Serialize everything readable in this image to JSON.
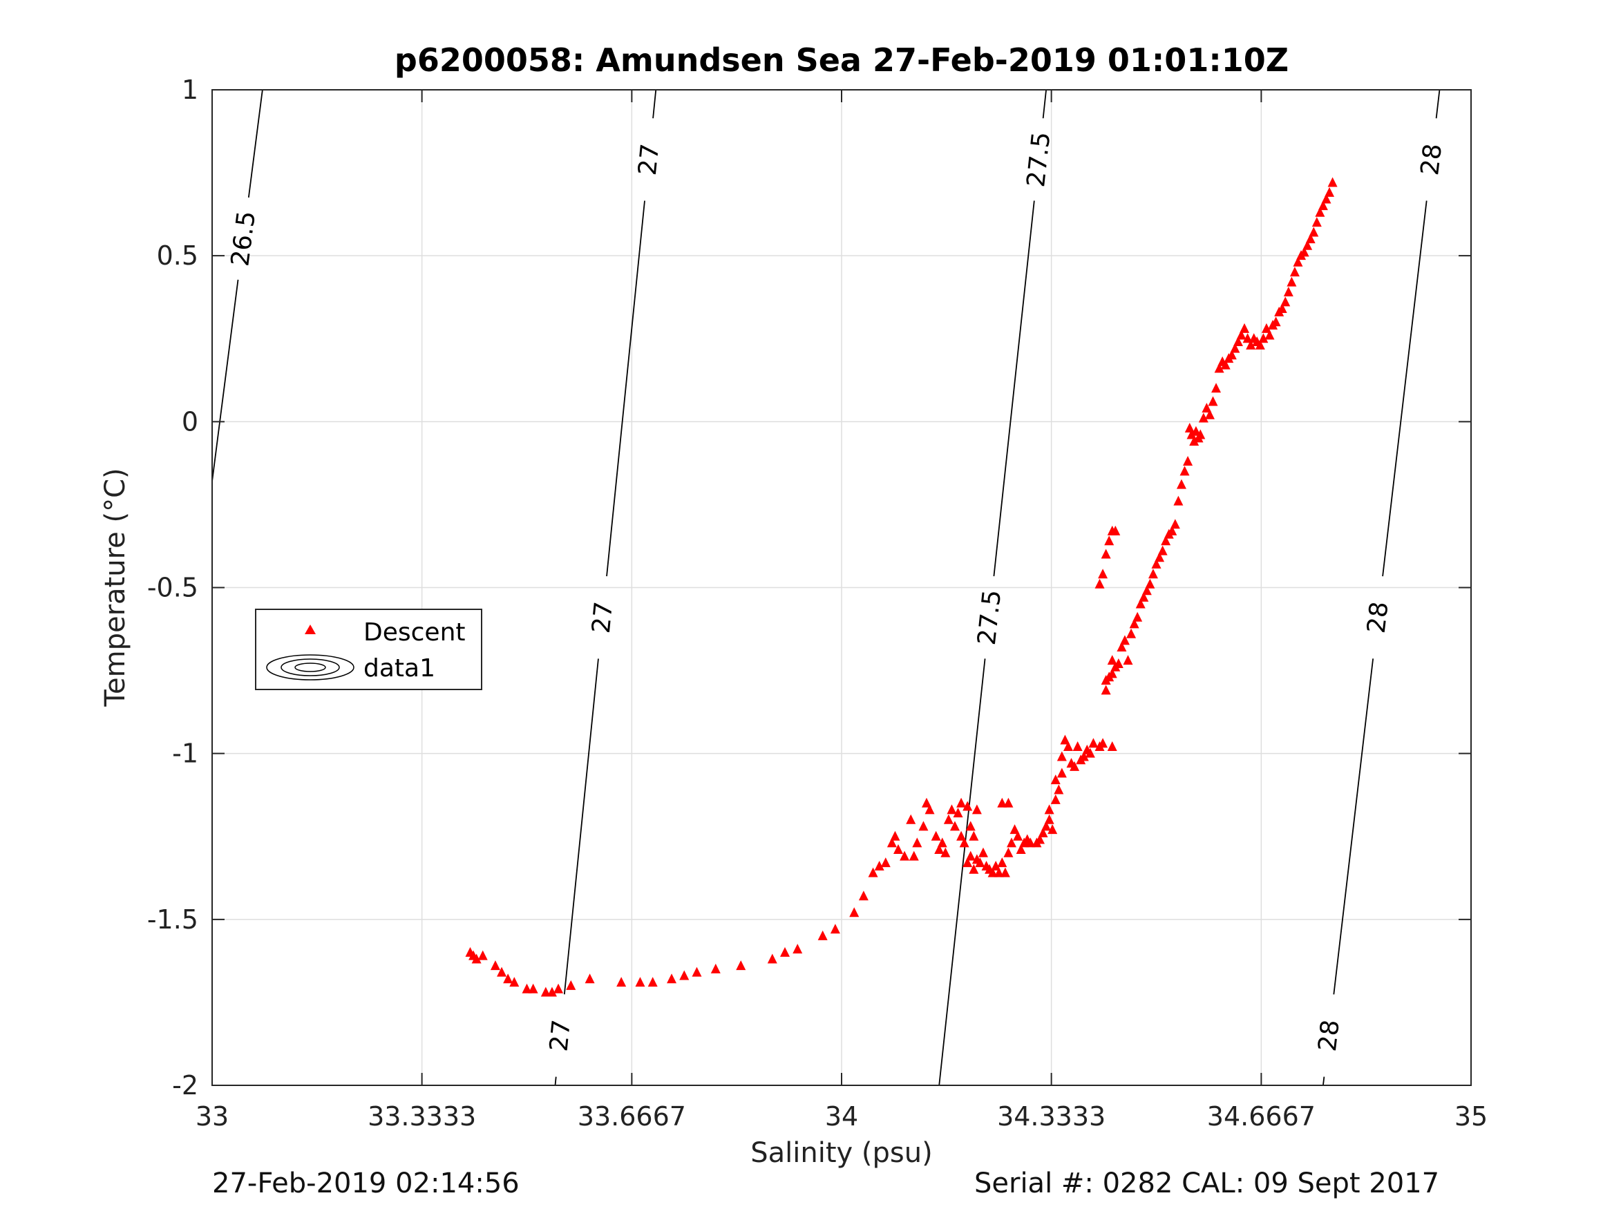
{
  "chart_data": {
    "type": "scatter",
    "title": "p6200058: Amundsen Sea 27-Feb-2019 01:01:10Z",
    "xlabel": "Salinity (psu)",
    "ylabel": "Temperature (°C)",
    "xlim": [
      33,
      35
    ],
    "ylim": [
      -2,
      1
    ],
    "x_ticks": [
      "33",
      "33.3333",
      "33.6667",
      "34",
      "34.3333",
      "34.6667",
      "35"
    ],
    "y_ticks": [
      "1",
      "0.5",
      "0",
      "-0.5",
      "-1",
      "-1.5",
      "-2"
    ],
    "grid": true,
    "legend": {
      "placement": "middle-left",
      "entries": [
        "Descent",
        "data1"
      ]
    },
    "marker_color": "#ff0000",
    "series": [
      {
        "name": "Descent",
        "marker": "triangle",
        "points": [
          [
            33.41,
            -1.6
          ],
          [
            33.415,
            -1.61
          ],
          [
            33.42,
            -1.62
          ],
          [
            33.43,
            -1.61
          ],
          [
            33.45,
            -1.64
          ],
          [
            33.46,
            -1.66
          ],
          [
            33.47,
            -1.68
          ],
          [
            33.48,
            -1.69
          ],
          [
            33.5,
            -1.71
          ],
          [
            33.51,
            -1.71
          ],
          [
            33.53,
            -1.72
          ],
          [
            33.54,
            -1.72
          ],
          [
            33.55,
            -1.71
          ],
          [
            33.57,
            -1.7
          ],
          [
            33.6,
            -1.68
          ],
          [
            33.65,
            -1.69
          ],
          [
            33.68,
            -1.69
          ],
          [
            33.7,
            -1.69
          ],
          [
            33.73,
            -1.68
          ],
          [
            33.75,
            -1.67
          ],
          [
            33.77,
            -1.66
          ],
          [
            33.8,
            -1.65
          ],
          [
            33.84,
            -1.64
          ],
          [
            33.89,
            -1.62
          ],
          [
            33.91,
            -1.6
          ],
          [
            33.93,
            -1.59
          ],
          [
            33.97,
            -1.55
          ],
          [
            33.99,
            -1.53
          ],
          [
            34.02,
            -1.48
          ],
          [
            34.035,
            -1.43
          ],
          [
            34.05,
            -1.36
          ],
          [
            34.06,
            -1.34
          ],
          [
            34.07,
            -1.33
          ],
          [
            34.08,
            -1.27
          ],
          [
            34.085,
            -1.25
          ],
          [
            34.09,
            -1.29
          ],
          [
            34.1,
            -1.31
          ],
          [
            34.11,
            -1.2
          ],
          [
            34.115,
            -1.31
          ],
          [
            34.12,
            -1.27
          ],
          [
            34.13,
            -1.22
          ],
          [
            34.135,
            -1.15
          ],
          [
            34.14,
            -1.17
          ],
          [
            34.15,
            -1.25
          ],
          [
            34.155,
            -1.29
          ],
          [
            34.16,
            -1.27
          ],
          [
            34.165,
            -1.3
          ],
          [
            34.17,
            -1.2
          ],
          [
            34.175,
            -1.17
          ],
          [
            34.18,
            -1.22
          ],
          [
            34.185,
            -1.18
          ],
          [
            34.19,
            -1.15
          ],
          [
            34.195,
            -1.27
          ],
          [
            34.2,
            -1.16
          ],
          [
            34.205,
            -1.22
          ],
          [
            34.21,
            -1.25
          ],
          [
            34.215,
            -1.17
          ],
          [
            34.19,
            -1.25
          ],
          [
            34.2,
            -1.33
          ],
          [
            34.205,
            -1.31
          ],
          [
            34.21,
            -1.35
          ],
          [
            34.215,
            -1.32
          ],
          [
            34.22,
            -1.33
          ],
          [
            34.225,
            -1.3
          ],
          [
            34.23,
            -1.34
          ],
          [
            34.235,
            -1.35
          ],
          [
            34.24,
            -1.36
          ],
          [
            34.245,
            -1.34
          ],
          [
            34.25,
            -1.36
          ],
          [
            34.255,
            -1.33
          ],
          [
            34.26,
            -1.36
          ],
          [
            34.265,
            -1.3
          ],
          [
            34.255,
            -1.15
          ],
          [
            34.265,
            -1.15
          ],
          [
            34.27,
            -1.27
          ],
          [
            34.275,
            -1.23
          ],
          [
            34.28,
            -1.25
          ],
          [
            34.285,
            -1.29
          ],
          [
            34.29,
            -1.27
          ],
          [
            34.295,
            -1.26
          ],
          [
            34.3,
            -1.27
          ],
          [
            34.31,
            -1.27
          ],
          [
            34.315,
            -1.26
          ],
          [
            34.32,
            -1.24
          ],
          [
            34.325,
            -1.22
          ],
          [
            34.33,
            -1.2
          ],
          [
            34.335,
            -1.23
          ],
          [
            34.33,
            -1.17
          ],
          [
            34.34,
            -1.14
          ],
          [
            34.345,
            -1.11
          ],
          [
            34.34,
            -1.08
          ],
          [
            34.35,
            -1.06
          ],
          [
            34.35,
            -1.01
          ],
          [
            34.355,
            -0.96
          ],
          [
            34.36,
            -0.98
          ],
          [
            34.365,
            -1.03
          ],
          [
            34.37,
            -1.04
          ],
          [
            34.375,
            -0.98
          ],
          [
            34.38,
            -1.02
          ],
          [
            34.385,
            -1.01
          ],
          [
            34.39,
            -0.99
          ],
          [
            34.395,
            -1.0
          ],
          [
            34.4,
            -0.97
          ],
          [
            34.41,
            -0.98
          ],
          [
            34.415,
            -0.97
          ],
          [
            34.42,
            -0.81
          ],
          [
            34.425,
            -0.77
          ],
          [
            34.43,
            -0.72
          ],
          [
            34.435,
            -0.74
          ],
          [
            34.44,
            -0.73
          ],
          [
            34.445,
            -0.68
          ],
          [
            34.45,
            -0.66
          ],
          [
            34.455,
            -0.72
          ],
          [
            34.46,
            -0.64
          ],
          [
            34.465,
            -0.61
          ],
          [
            34.47,
            -0.59
          ],
          [
            34.475,
            -0.55
          ],
          [
            34.48,
            -0.53
          ],
          [
            34.485,
            -0.51
          ],
          [
            34.49,
            -0.49
          ],
          [
            34.495,
            -0.46
          ],
          [
            34.5,
            -0.43
          ],
          [
            34.505,
            -0.41
          ],
          [
            34.51,
            -0.39
          ],
          [
            34.515,
            -0.36
          ],
          [
            34.52,
            -0.34
          ],
          [
            34.525,
            -0.33
          ],
          [
            34.53,
            -0.31
          ],
          [
            34.535,
            -0.24
          ],
          [
            34.54,
            -0.19
          ],
          [
            34.545,
            -0.15
          ],
          [
            34.55,
            -0.12
          ],
          [
            34.553,
            -0.02
          ],
          [
            34.556,
            -0.04
          ],
          [
            34.56,
            -0.06
          ],
          [
            34.563,
            -0.03
          ],
          [
            34.567,
            -0.05
          ],
          [
            34.57,
            -0.04
          ],
          [
            34.575,
            0.01
          ],
          [
            34.58,
            0.04
          ],
          [
            34.585,
            0.02
          ],
          [
            34.59,
            0.06
          ],
          [
            34.595,
            0.1
          ],
          [
            34.6,
            0.16
          ],
          [
            34.605,
            0.18
          ],
          [
            34.61,
            0.17
          ],
          [
            34.615,
            0.19
          ],
          [
            34.62,
            0.2
          ],
          [
            34.625,
            0.22
          ],
          [
            34.63,
            0.24
          ],
          [
            34.635,
            0.26
          ],
          [
            34.64,
            0.28
          ],
          [
            34.645,
            0.25
          ],
          [
            34.65,
            0.23
          ],
          [
            34.655,
            0.25
          ],
          [
            34.66,
            0.24
          ],
          [
            34.665,
            0.23
          ],
          [
            34.67,
            0.25
          ],
          [
            34.675,
            0.28
          ],
          [
            34.68,
            0.26
          ],
          [
            34.685,
            0.29
          ],
          [
            34.69,
            0.3
          ],
          [
            34.695,
            0.33
          ],
          [
            34.7,
            0.34
          ],
          [
            34.705,
            0.36
          ],
          [
            34.71,
            0.39
          ],
          [
            34.715,
            0.42
          ],
          [
            34.72,
            0.45
          ],
          [
            34.725,
            0.48
          ],
          [
            34.73,
            0.5
          ],
          [
            34.735,
            0.51
          ],
          [
            34.74,
            0.53
          ],
          [
            34.745,
            0.55
          ],
          [
            34.75,
            0.57
          ],
          [
            34.755,
            0.6
          ],
          [
            34.76,
            0.63
          ],
          [
            34.765,
            0.65
          ],
          [
            34.77,
            0.67
          ],
          [
            34.775,
            0.69
          ],
          [
            34.78,
            0.72
          ],
          [
            34.41,
            -0.49
          ],
          [
            34.415,
            -0.46
          ],
          [
            34.42,
            -0.4
          ],
          [
            34.425,
            -0.36
          ],
          [
            34.43,
            -0.33
          ],
          [
            34.435,
            -0.33
          ],
          [
            34.42,
            -0.78
          ],
          [
            34.43,
            -0.76
          ],
          [
            34.43,
            -0.98
          ]
        ]
      }
    ],
    "contours": [
      {
        "label": "26.5",
        "points": [
          [
            33.0,
            -0.18
          ],
          [
            33.08,
            1.0
          ]
        ]
      },
      {
        "label": "27",
        "points": [
          [
            33.545,
            -2.0
          ],
          [
            33.705,
            1.0
          ]
        ]
      },
      {
        "label": "27.5",
        "points": [
          [
            34.155,
            -2.0
          ],
          [
            34.325,
            1.0
          ]
        ]
      },
      {
        "label": "28",
        "points": [
          [
            34.765,
            -2.0
          ],
          [
            34.95,
            1.0
          ]
        ]
      }
    ],
    "contour_label_texts": [
      "26.5",
      "27",
      "27",
      "27",
      "27.5",
      "27.5",
      "28",
      "28",
      "28"
    ]
  },
  "footer": {
    "timestamp": "27-Feb-2019 02:14:56",
    "serial": "Serial #: 0282  CAL: 09 Sept 2017"
  }
}
